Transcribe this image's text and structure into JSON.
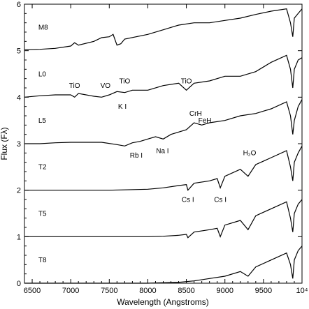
{
  "chart_data": {
    "type": "line",
    "xlabel": "Wavelength (Angstroms)",
    "ylabel": "Flux (Fλ)",
    "xlim": [
      6400,
      10000
    ],
    "ylim": [
      0,
      6
    ],
    "x_ticks": [
      {
        "value": 6500,
        "label": "6500"
      },
      {
        "value": 7000,
        "label": "7000"
      },
      {
        "value": 7500,
        "label": "7500"
      },
      {
        "value": 8000,
        "label": "8000"
      },
      {
        "value": 8500,
        "label": "8500"
      },
      {
        "value": 9000,
        "label": "9000"
      },
      {
        "value": 9500,
        "label": "9500"
      },
      {
        "value": 10000,
        "label": "10⁴"
      }
    ],
    "y_ticks": [
      0,
      1,
      2,
      3,
      4,
      5,
      6
    ],
    "series": [
      {
        "name": "M8",
        "x": [
          6400,
          6600,
          6800,
          7000,
          7050,
          7100,
          7300,
          7400,
          7500,
          7550,
          7600,
          7650,
          7700,
          8000,
          8200,
          8400,
          8600,
          8800,
          9000,
          9200,
          9400,
          9600,
          9800,
          9850,
          9880,
          9900,
          9950,
          10000
        ],
        "y": [
          5.02,
          5.03,
          5.05,
          5.1,
          5.17,
          5.12,
          5.2,
          5.28,
          5.3,
          5.35,
          5.12,
          5.15,
          5.25,
          5.35,
          5.45,
          5.55,
          5.6,
          5.6,
          5.65,
          5.7,
          5.78,
          5.85,
          5.9,
          5.6,
          5.3,
          5.7,
          5.8,
          5.9
        ]
      },
      {
        "name": "L0",
        "x": [
          6400,
          6600,
          6800,
          7000,
          7050,
          7100,
          7300,
          7400,
          7500,
          7600,
          7700,
          7800,
          8000,
          8200,
          8400,
          8500,
          8600,
          8800,
          9000,
          9200,
          9400,
          9600,
          9800,
          9850,
          9880,
          9900,
          9950,
          10000
        ],
        "y": [
          4.0,
          4.03,
          4.05,
          4.05,
          4.0,
          4.08,
          4.02,
          4.0,
          4.05,
          4.12,
          4.1,
          4.15,
          4.15,
          4.25,
          4.3,
          4.15,
          4.3,
          4.35,
          4.45,
          4.45,
          4.55,
          4.75,
          4.9,
          4.6,
          4.2,
          4.6,
          4.8,
          4.85
        ]
      },
      {
        "name": "L5",
        "x": [
          6400,
          6600,
          6800,
          7000,
          7200,
          7400,
          7600,
          7700,
          7800,
          7900,
          8000,
          8100,
          8200,
          8300,
          8400,
          8500,
          8600,
          8700,
          8800,
          9000,
          9200,
          9400,
          9600,
          9800,
          9850,
          9880,
          9900,
          9950,
          10000
        ],
        "y": [
          3.0,
          3.0,
          3.02,
          3.03,
          3.03,
          3.03,
          2.98,
          2.95,
          3.02,
          3.05,
          3.1,
          3.15,
          3.1,
          3.2,
          3.25,
          3.3,
          3.45,
          3.4,
          3.45,
          3.5,
          3.6,
          3.65,
          3.75,
          3.9,
          3.6,
          3.2,
          3.5,
          3.8,
          3.95
        ]
      },
      {
        "name": "T2",
        "x": [
          6400,
          6600,
          6800,
          7000,
          7500,
          8000,
          8200,
          8400,
          8500,
          8520,
          8600,
          8800,
          8900,
          8940,
          9000,
          9200,
          9300,
          9400,
          9600,
          9800,
          9850,
          9880,
          9900,
          9950,
          10000
        ],
        "y": [
          2.0,
          2.0,
          2.0,
          2.0,
          2.0,
          2.02,
          2.05,
          2.1,
          2.12,
          2.0,
          2.15,
          2.2,
          2.25,
          2.05,
          2.3,
          2.45,
          2.3,
          2.55,
          2.7,
          2.85,
          2.5,
          2.2,
          2.6,
          2.8,
          2.95
        ]
      },
      {
        "name": "T5",
        "x": [
          6400,
          6600,
          6800,
          7000,
          7500,
          8000,
          8200,
          8400,
          8500,
          8520,
          8600,
          8800,
          8900,
          8940,
          9000,
          9200,
          9300,
          9400,
          9600,
          9800,
          9850,
          9880,
          9900,
          9950,
          10000
        ],
        "y": [
          1.0,
          1.0,
          1.0,
          1.0,
          1.0,
          1.0,
          1.01,
          1.03,
          1.05,
          0.98,
          1.1,
          1.15,
          1.18,
          1.0,
          1.25,
          1.35,
          1.15,
          1.45,
          1.6,
          1.75,
          1.4,
          1.1,
          1.5,
          1.7,
          1.8
        ]
      },
      {
        "name": "T8",
        "x": [
          6400,
          6600,
          6800,
          7000,
          7500,
          8000,
          8200,
          8400,
          8600,
          8800,
          9000,
          9200,
          9300,
          9400,
          9600,
          9800,
          9850,
          9880,
          9900,
          9950,
          10000
        ],
        "y": [
          0.0,
          0.0,
          0.0,
          0.0,
          0.0,
          0.0,
          0.01,
          0.02,
          0.05,
          0.1,
          0.15,
          0.25,
          0.15,
          0.35,
          0.5,
          0.65,
          0.4,
          0.1,
          0.5,
          0.7,
          0.8
        ]
      }
    ],
    "series_labels": [
      {
        "text": "M8",
        "x": 6580,
        "y": 5.45
      },
      {
        "text": "L0",
        "x": 6580,
        "y": 4.45
      },
      {
        "text": "L5",
        "x": 6580,
        "y": 3.45
      },
      {
        "text": "T2",
        "x": 6580,
        "y": 2.45
      },
      {
        "text": "T5",
        "x": 6580,
        "y": 1.45
      },
      {
        "text": "T8",
        "x": 6580,
        "y": 0.45
      }
    ],
    "annotations": [
      {
        "text": "TiO",
        "x": 7050,
        "y": 4.2
      },
      {
        "text": "VO",
        "x": 7450,
        "y": 4.2
      },
      {
        "text": "TiO",
        "x": 7700,
        "y": 4.3
      },
      {
        "text": "TiO",
        "x": 8500,
        "y": 4.3
      },
      {
        "text": "K I",
        "x": 7670,
        "y": 3.75
      },
      {
        "text": "Rb I",
        "x": 7850,
        "y": 2.7
      },
      {
        "text": "Na I",
        "x": 8190,
        "y": 2.8
      },
      {
        "text": "CrH",
        "x": 8620,
        "y": 3.6
      },
      {
        "text": "FeH",
        "x": 8740,
        "y": 3.45
      },
      {
        "text": "Cs I",
        "x": 8520,
        "y": 1.75
      },
      {
        "text": "Cs I",
        "x": 8940,
        "y": 1.75
      },
      {
        "text": "H₂O",
        "x": 9320,
        "y": 2.75
      }
    ]
  }
}
